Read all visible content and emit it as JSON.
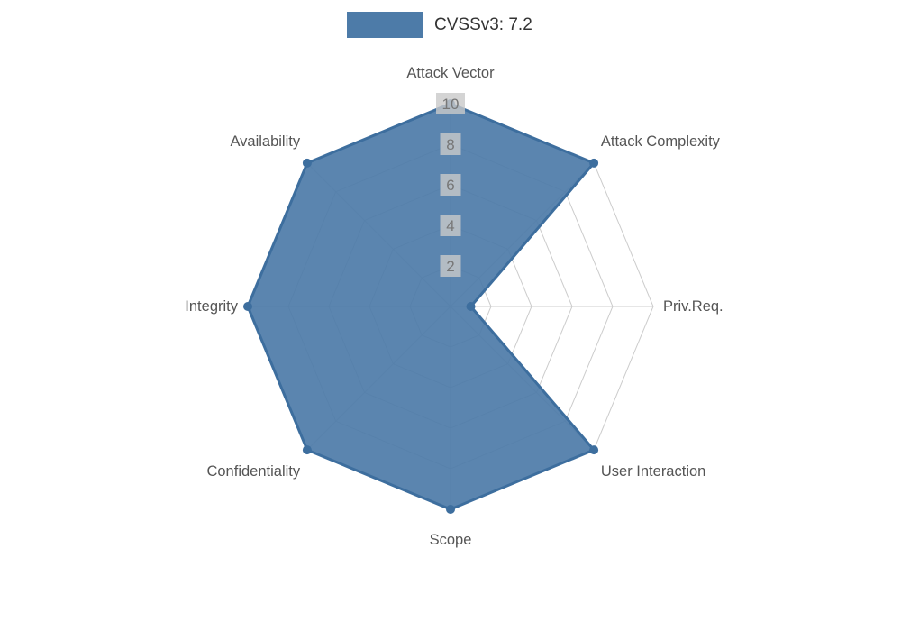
{
  "legend": {
    "label": "CVSSv3: 7.2"
  },
  "chart_data": {
    "type": "radar",
    "title": "CVSSv3: 7.2",
    "axes": [
      "Attack Vector",
      "Attack Complexity",
      "Priv.Req.",
      "User Interaction",
      "Scope",
      "Confidentiality",
      "Integrity",
      "Availability"
    ],
    "series": [
      {
        "name": "CVSSv3: 7.2",
        "values": [
          10,
          10,
          1,
          10,
          10,
          10,
          10,
          10
        ]
      }
    ],
    "ticks": [
      2,
      4,
      6,
      8,
      10
    ],
    "max": 10,
    "grid": true,
    "legend_position": "top-center",
    "colors": {
      "fill": "#4d7ba8",
      "stroke": "#3d6e9e",
      "grid": "#cccccc",
      "tick_text": "#777777",
      "tick_bg": "#c9c9c9",
      "axis_label": "#555555"
    }
  }
}
